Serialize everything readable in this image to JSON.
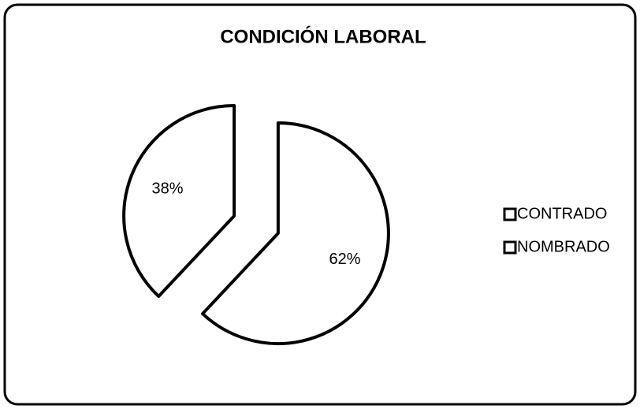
{
  "chart_data": {
    "type": "pie",
    "title": "CONDICIÓN LABORAL",
    "categories": [
      "CONTRADO",
      "NOMBRADO"
    ],
    "values": [
      38,
      62
    ],
    "value_labels": [
      "38%",
      "62%"
    ],
    "colors": [
      "#ffffff",
      "#ffffff"
    ],
    "legend": "right"
  }
}
